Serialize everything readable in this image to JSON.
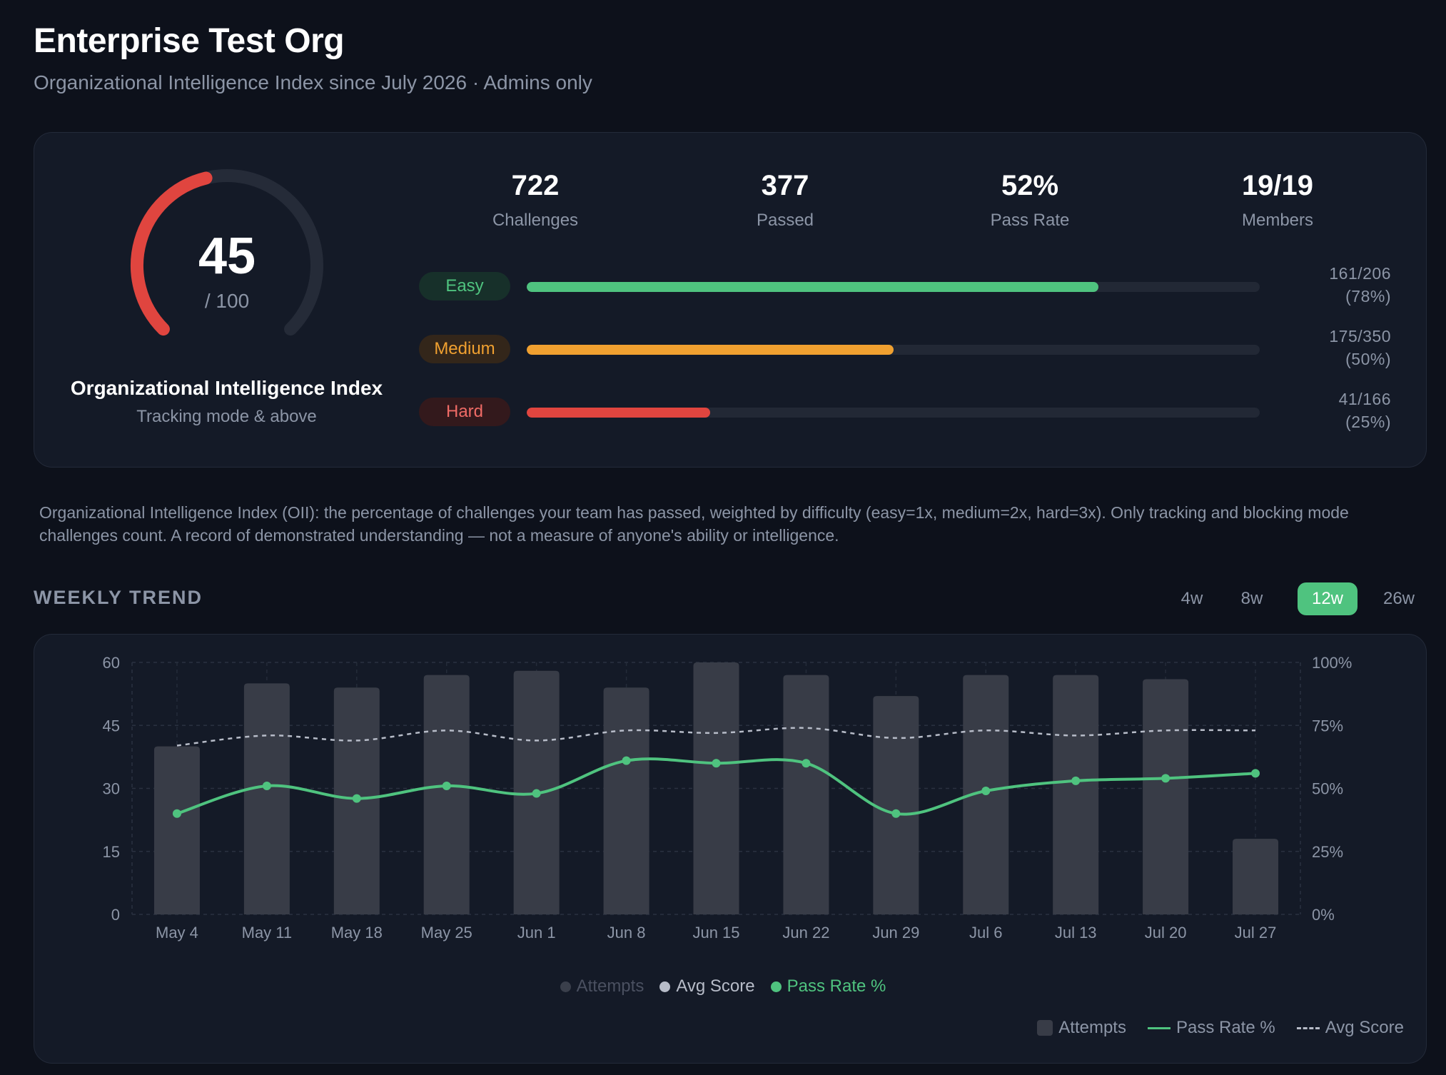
{
  "header": {
    "title": "Enterprise Test Org",
    "subtitle": "Organizational Intelligence Index since July 2026 · Admins only"
  },
  "index": {
    "score": "45",
    "score_value": 45,
    "max_label": "/ 100",
    "title": "Organizational Intelligence Index",
    "caption": "Tracking mode & above",
    "gauge_color": "#e0453f",
    "track_color": "#252b38"
  },
  "stats": [
    {
      "value": "722",
      "label": "Challenges"
    },
    {
      "value": "377",
      "label": "Passed"
    },
    {
      "value": "52%",
      "label": "Pass Rate"
    },
    {
      "value": "19/19",
      "label": "Members"
    }
  ],
  "difficulty": [
    {
      "label": "Easy",
      "fraction": 0.78,
      "count": "161/206",
      "percent": "(78%)",
      "color": "#4fc37f",
      "pill_bg": "#17302a",
      "pill_text": "#4fc37f"
    },
    {
      "label": "Medium",
      "fraction": 0.5,
      "count": "175/350",
      "percent": "(50%)",
      "color": "#f0a030",
      "pill_bg": "#33261a",
      "pill_text": "#f0a030"
    },
    {
      "label": "Hard",
      "fraction": 0.25,
      "count": "41/166",
      "percent": "(25%)",
      "color": "#e0453f",
      "pill_bg": "#33191c",
      "pill_text": "#ef6b66"
    }
  ],
  "description": "Organizational Intelligence Index (OII): the percentage of challenges your team has passed, weighted by difficulty (easy=1x, medium=2x, hard=3x). Only tracking and blocking mode challenges count. A record of demonstrated understanding — not a measure of anyone's ability or intelligence.",
  "trend": {
    "section_title": "WEEKLY TREND",
    "ranges": [
      "4w",
      "8w",
      "12w",
      "26w"
    ],
    "active_range": "12w"
  },
  "chart_data": {
    "type": "bar",
    "categories": [
      "May 4",
      "May 11",
      "May 18",
      "May 25",
      "Jun 1",
      "Jun 8",
      "Jun 15",
      "Jun 22",
      "Jun 29",
      "Jul 6",
      "Jul 13",
      "Jul 20",
      "Jul 27"
    ],
    "series": [
      {
        "name": "Attempts",
        "type": "bar",
        "axis": "left",
        "color": "#383c47",
        "values": [
          40,
          55,
          54,
          57,
          58,
          54,
          60,
          57,
          52,
          57,
          57,
          56,
          18
        ]
      },
      {
        "name": "Pass Rate %",
        "type": "line",
        "axis": "right",
        "color": "#4fc37f",
        "values": [
          40,
          51,
          46,
          51,
          48,
          61,
          60,
          60,
          40,
          49,
          53,
          54,
          56
        ]
      },
      {
        "name": "Avg Score",
        "type": "line",
        "axis": "right",
        "style": "dashed",
        "color": "#b7bcc8",
        "values": [
          67,
          71,
          69,
          73,
          69,
          73,
          72,
          74,
          70,
          73,
          71,
          73,
          73
        ]
      }
    ],
    "y_left": {
      "ticks": [
        "0",
        "15",
        "30",
        "45",
        "60"
      ],
      "range": [
        0,
        60
      ]
    },
    "y_right": {
      "ticks": [
        "0%",
        "25%",
        "50%",
        "75%",
        "100%"
      ],
      "range": [
        0,
        100
      ]
    },
    "grid": true,
    "legend_top": [
      {
        "label": "Attempts",
        "color": "#3a3f4b"
      },
      {
        "label": "Avg Score",
        "color": "#b7bcc8"
      },
      {
        "label": "Pass Rate %",
        "color": "#4fc37f"
      }
    ],
    "legend_bottom": [
      {
        "label": "Attempts",
        "swatch": "box"
      },
      {
        "label": "Pass Rate %",
        "swatch": "line",
        "color": "#4fc37f"
      },
      {
        "label": "Avg Score",
        "swatch": "dash"
      }
    ]
  }
}
